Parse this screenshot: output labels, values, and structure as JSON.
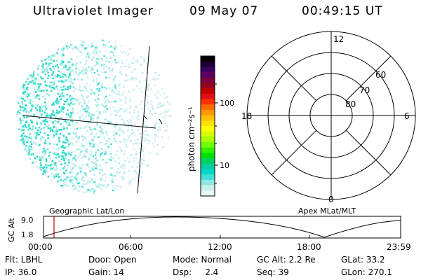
{
  "header": {
    "title": "Ultraviolet Imager",
    "date": "09 May 07",
    "time": "00:49:15 UT"
  },
  "colorbar": {
    "unit_label": "photon cm⁻²s⁻¹",
    "ticks": [
      "100",
      "10"
    ],
    "colors": [
      "#000000",
      "#1a0030",
      "#3a0060",
      "#5a0060",
      "#7a0040",
      "#9a0020",
      "#c00000",
      "#e01010",
      "#ff3000",
      "#ff6a00",
      "#ff9800",
      "#ffc000",
      "#ffe000",
      "#ffff00",
      "#d8ff00",
      "#a8ff00",
      "#70ff00",
      "#30f000",
      "#00e000",
      "#00d060",
      "#00d0a0",
      "#00d8c8",
      "#40e0d8",
      "#90e8e0",
      "#c8f0ec",
      "#e8f6f4"
    ]
  },
  "polar_plot": {
    "mlt_labels": [
      "12",
      "18",
      "6",
      "0"
    ],
    "lat_labels": [
      "60",
      "70",
      "80"
    ]
  },
  "geographic_plot": {
    "label": "Geographic Lat/Lon",
    "dot_colors": [
      "#20d8c0",
      "#40e0d0",
      "#8ee6dc",
      "#b8ecec",
      "#d4f0ee",
      "#c8e4f0"
    ]
  },
  "apex_label": "Apex MLat/MLT",
  "timeline": {
    "y_label": "GC Alt",
    "y_ticks": [
      "9.0",
      "1.8"
    ],
    "x_ticks": [
      "00:00",
      "06:00",
      "12:00",
      "18:00",
      "23:59"
    ],
    "marker_color": "#c00000"
  },
  "info": {
    "row1": {
      "flt": "Flt: LBHL",
      "door": "Door: Open",
      "mode": "Mode: Normal",
      "gcalt": "GC Alt: 2.2 Re",
      "glat": "GLat:  33.2"
    },
    "row2": {
      "ip": "IP: 36.0",
      "gain": "Gain: 14",
      "dsp": "Dsp:     2.4",
      "seq": "Seq: 39",
      "glon": "GLon: 270.1"
    }
  }
}
